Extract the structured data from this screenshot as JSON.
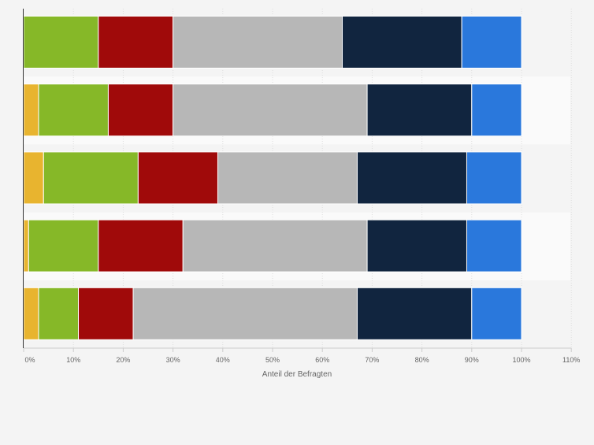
{
  "chart_data": {
    "type": "bar",
    "orientation": "horizontal",
    "stacked": true,
    "title": "",
    "xlabel": "Anteil der Befragten",
    "ylabel": "",
    "xlim": [
      0,
      110
    ],
    "x_ticks": [
      "0%",
      "10%",
      "20%",
      "30%",
      "40%",
      "50%",
      "60%",
      "70%",
      "80%",
      "90%",
      "100%",
      "110%"
    ],
    "grid": true,
    "categories": [
      "",
      "",
      "",
      "",
      ""
    ],
    "series": [
      {
        "name": "",
        "color": "#e8b42f",
        "values": [
          0,
          3,
          4,
          1,
          3
        ]
      },
      {
        "name": "",
        "color": "#86b828",
        "values": [
          15,
          14,
          19,
          14,
          8
        ]
      },
      {
        "name": "",
        "color": "#a00a0a",
        "values": [
          15,
          13,
          16,
          17,
          11
        ]
      },
      {
        "name": "",
        "color": "#b7b7b7",
        "values": [
          34,
          39,
          28,
          37,
          45
        ]
      },
      {
        "name": "",
        "color": "#11253f",
        "values": [
          24,
          21,
          22,
          20,
          23
        ]
      },
      {
        "name": "",
        "color": "#2a78dc",
        "values": [
          12,
          10,
          11,
          11,
          10
        ]
      }
    ]
  }
}
